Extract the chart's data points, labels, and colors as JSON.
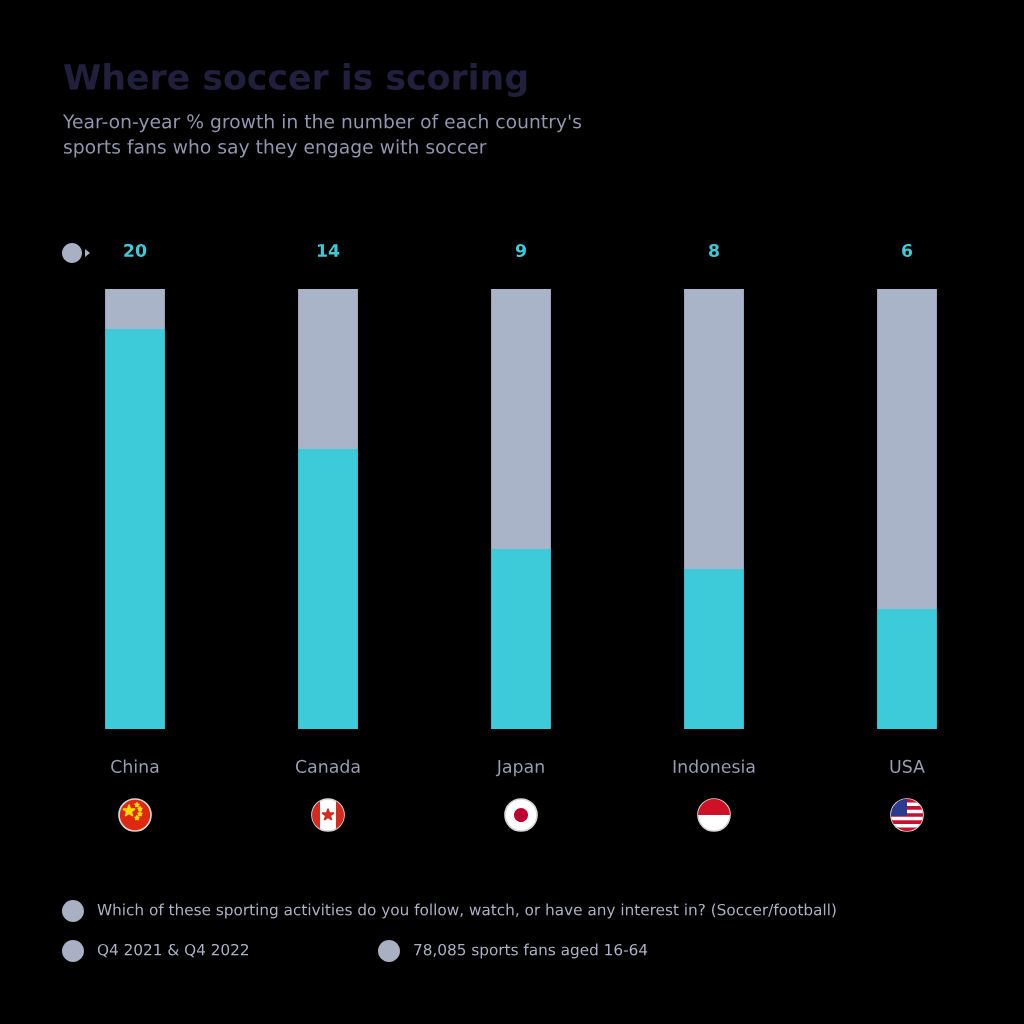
{
  "chart_data": {
    "type": "bar",
    "title": "Where soccer is scoring",
    "subtitle": "Year-on-year % growth in the number of each country's sports fans who say they engage with soccer",
    "categories": [
      "China",
      "Canada",
      "Japan",
      "Indonesia",
      "USA"
    ],
    "stacked": true,
    "series": [
      {
        "color": "#3ecbd9",
        "values": [
          20,
          14,
          9,
          8,
          6
        ],
        "value_labels": [
          "20",
          "14",
          "9",
          "8",
          "6"
        ]
      },
      {
        "color": "#aab4c8",
        "values": [
          2,
          8,
          13,
          14,
          16
        ]
      }
    ],
    "tick_labels": "x",
    "annotations": [
      "Which of these sporting activities do you follow, watch, or have any interest in? (Soccer/football)",
      "Q4 2021 & Q4 2022",
      "78,085 sports fans aged 16-64"
    ]
  }
}
